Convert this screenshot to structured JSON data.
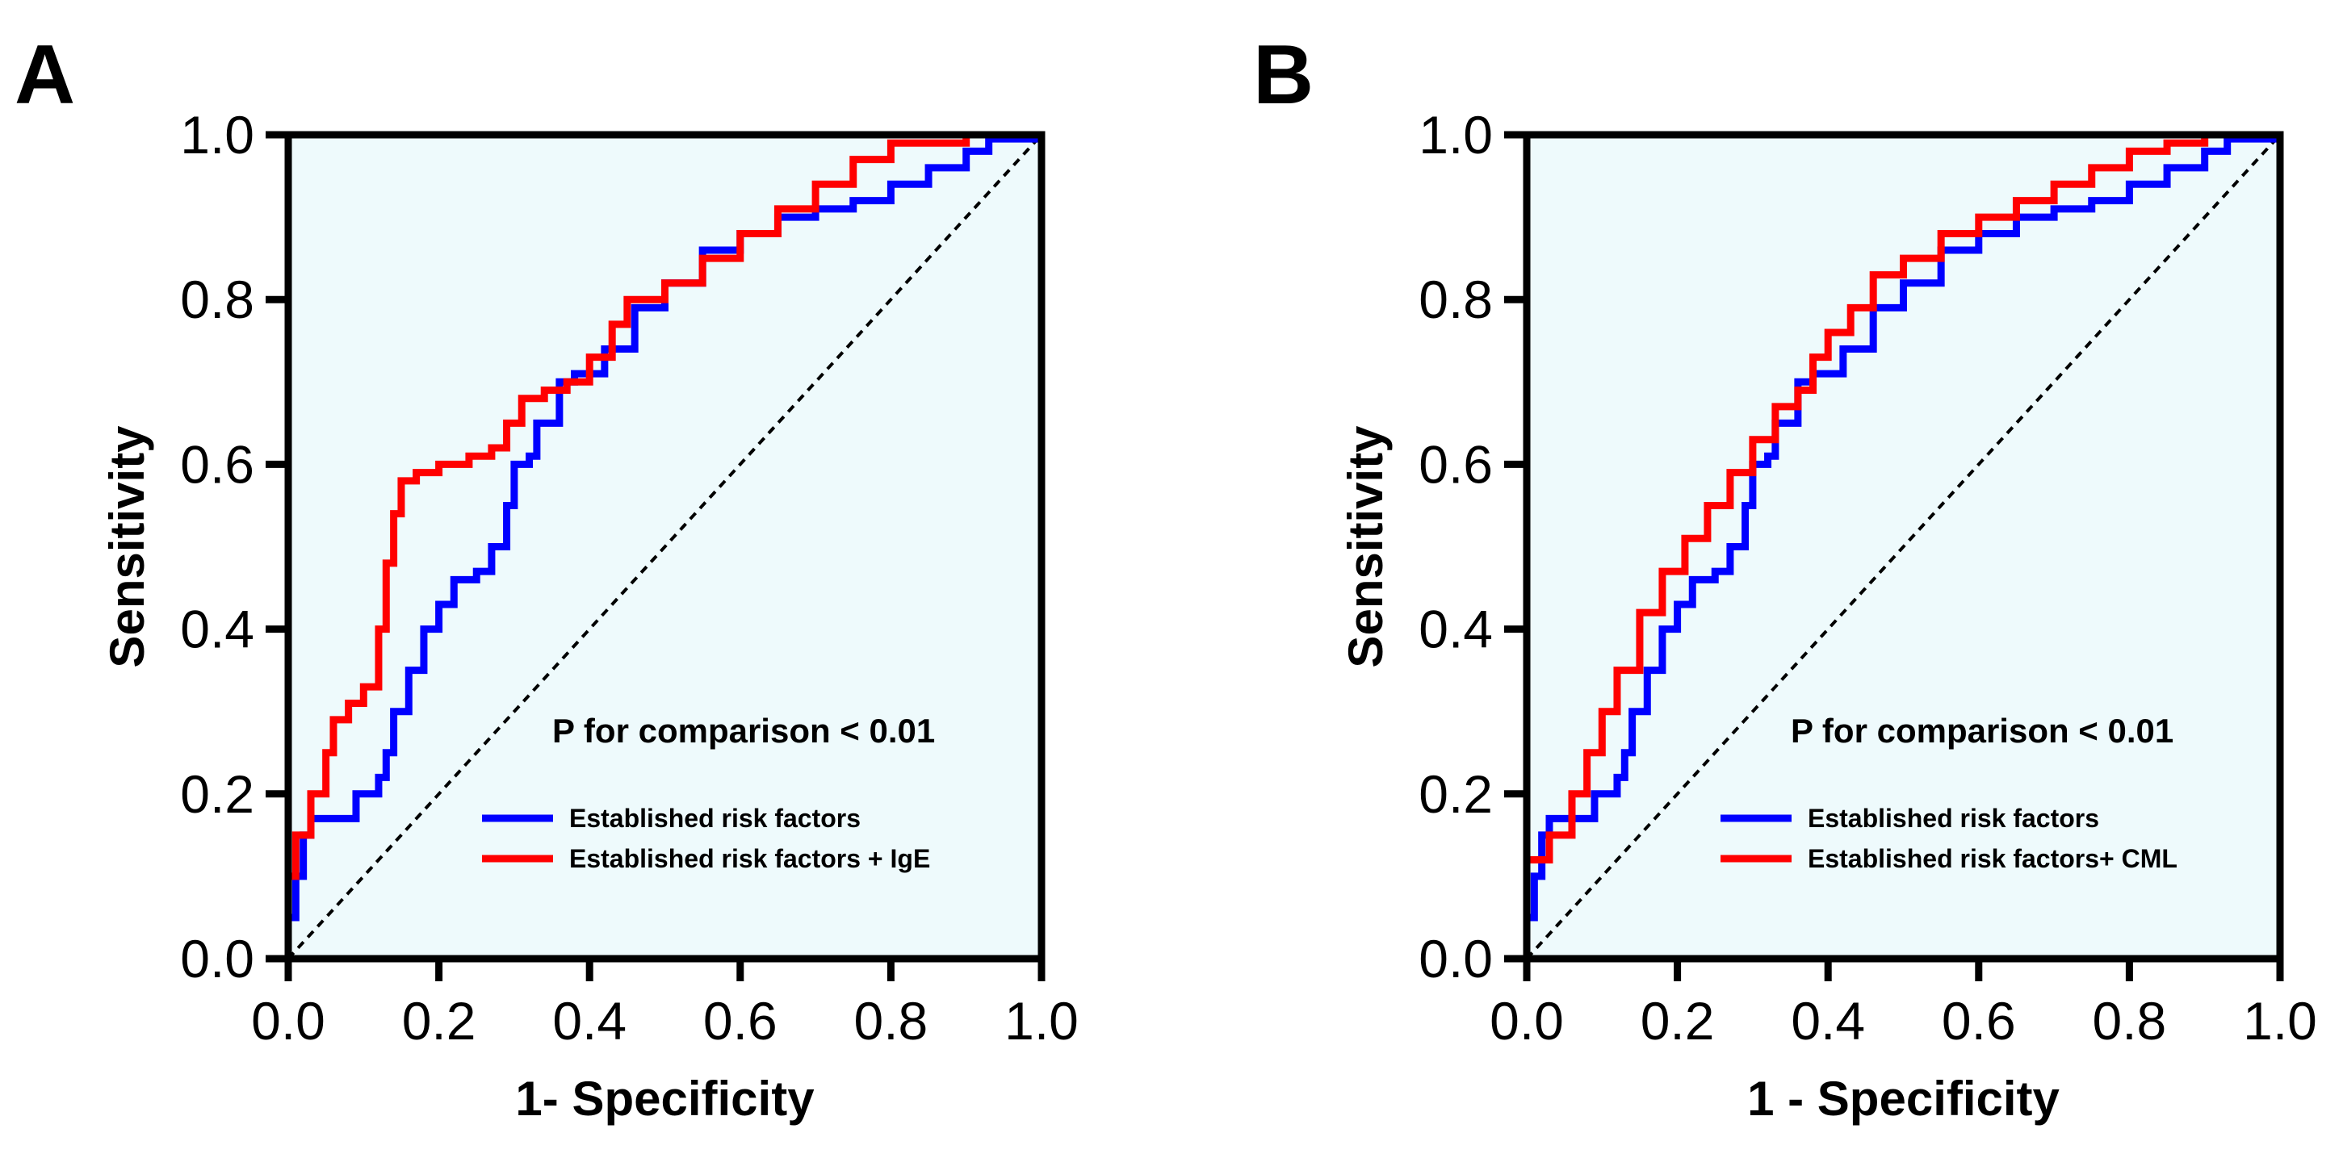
{
  "chart_data": [
    {
      "type": "line",
      "panel_label": "A",
      "xlabel": "1- Specificity",
      "ylabel": "Sensitivity",
      "xlim": [
        0,
        1
      ],
      "ylim": [
        0,
        1
      ],
      "xticks": [
        "0.0",
        "0.2",
        "0.4",
        "0.6",
        "0.8",
        "1.0"
      ],
      "yticks": [
        "0.0",
        "0.2",
        "0.4",
        "0.6",
        "0.8",
        "1.0"
      ],
      "annotation": "P for comparison < 0.01",
      "background_color": "#eefafc",
      "reference_line": "diagonal dashed",
      "legend_position": "bottom-right",
      "series": [
        {
          "name": "Established risk factors",
          "color": "#0000ff",
          "x": [
            0,
            0,
            0.01,
            0.02,
            0.03,
            0.07,
            0.09,
            0.12,
            0.13,
            0.14,
            0.16,
            0.18,
            0.2,
            0.22,
            0.25,
            0.27,
            0.29,
            0.3,
            0.32,
            0.33,
            0.36,
            0.38,
            0.42,
            0.46,
            0.5,
            0.55,
            0.6,
            0.65,
            0.7,
            0.75,
            0.8,
            0.85,
            0.9,
            0.93,
            1
          ],
          "y": [
            0,
            0.05,
            0.1,
            0.15,
            0.17,
            0.17,
            0.2,
            0.22,
            0.25,
            0.3,
            0.35,
            0.4,
            0.43,
            0.46,
            0.47,
            0.5,
            0.55,
            0.6,
            0.61,
            0.65,
            0.7,
            0.71,
            0.74,
            0.79,
            0.82,
            0.86,
            0.88,
            0.9,
            0.91,
            0.92,
            0.94,
            0.96,
            0.98,
            0.995,
            1
          ]
        },
        {
          "name": "Established risk factors + IgE",
          "color": "#ff0000",
          "x": [
            0,
            0,
            0.01,
            0.03,
            0.05,
            0.06,
            0.08,
            0.1,
            0.12,
            0.13,
            0.14,
            0.15,
            0.17,
            0.2,
            0.24,
            0.27,
            0.29,
            0.31,
            0.34,
            0.37,
            0.4,
            0.43,
            0.45,
            0.5,
            0.55,
            0.6,
            0.65,
            0.7,
            0.75,
            0.8,
            0.9,
            1
          ],
          "y": [
            0,
            0.1,
            0.15,
            0.2,
            0.25,
            0.29,
            0.31,
            0.33,
            0.4,
            0.48,
            0.54,
            0.58,
            0.59,
            0.6,
            0.61,
            0.62,
            0.65,
            0.68,
            0.69,
            0.7,
            0.73,
            0.77,
            0.8,
            0.82,
            0.85,
            0.88,
            0.91,
            0.94,
            0.97,
            0.99,
            1,
            1
          ]
        }
      ]
    },
    {
      "type": "line",
      "panel_label": "B",
      "xlabel": "1 - Specificity",
      "ylabel": "Sensitivity",
      "xlim": [
        0,
        1
      ],
      "ylim": [
        0,
        1
      ],
      "xticks": [
        "0.0",
        "0.2",
        "0.4",
        "0.6",
        "0.8",
        "1.0"
      ],
      "yticks": [
        "0.0",
        "0.2",
        "0.4",
        "0.6",
        "0.8",
        "1.0"
      ],
      "annotation": "P for comparison < 0.01",
      "background_color": "#eefafc",
      "reference_line": "diagonal dashed",
      "legend_position": "bottom-right",
      "series": [
        {
          "name": "Established risk factors",
          "color": "#0000ff",
          "x": [
            0,
            0,
            0.01,
            0.02,
            0.03,
            0.07,
            0.09,
            0.12,
            0.13,
            0.14,
            0.16,
            0.18,
            0.2,
            0.22,
            0.25,
            0.27,
            0.29,
            0.3,
            0.32,
            0.33,
            0.36,
            0.38,
            0.42,
            0.46,
            0.5,
            0.55,
            0.6,
            0.65,
            0.7,
            0.75,
            0.8,
            0.85,
            0.9,
            0.93,
            1
          ],
          "y": [
            0,
            0.05,
            0.1,
            0.15,
            0.17,
            0.17,
            0.2,
            0.22,
            0.25,
            0.3,
            0.35,
            0.4,
            0.43,
            0.46,
            0.47,
            0.5,
            0.55,
            0.6,
            0.61,
            0.65,
            0.7,
            0.71,
            0.74,
            0.79,
            0.82,
            0.86,
            0.88,
            0.9,
            0.91,
            0.92,
            0.94,
            0.96,
            0.98,
            0.995,
            1
          ]
        },
        {
          "name": "Established risk factors+ CML",
          "color": "#ff0000",
          "x": [
            0,
            0,
            0.03,
            0.06,
            0.08,
            0.1,
            0.12,
            0.15,
            0.18,
            0.21,
            0.24,
            0.27,
            0.3,
            0.33,
            0.36,
            0.38,
            0.4,
            0.43,
            0.46,
            0.5,
            0.55,
            0.6,
            0.65,
            0.7,
            0.75,
            0.8,
            0.85,
            0.9,
            1
          ],
          "y": [
            0,
            0.12,
            0.15,
            0.2,
            0.25,
            0.3,
            0.35,
            0.42,
            0.47,
            0.51,
            0.55,
            0.59,
            0.63,
            0.67,
            0.69,
            0.73,
            0.76,
            0.79,
            0.83,
            0.85,
            0.88,
            0.9,
            0.92,
            0.94,
            0.96,
            0.98,
            0.99,
            1,
            1
          ]
        }
      ]
    }
  ]
}
